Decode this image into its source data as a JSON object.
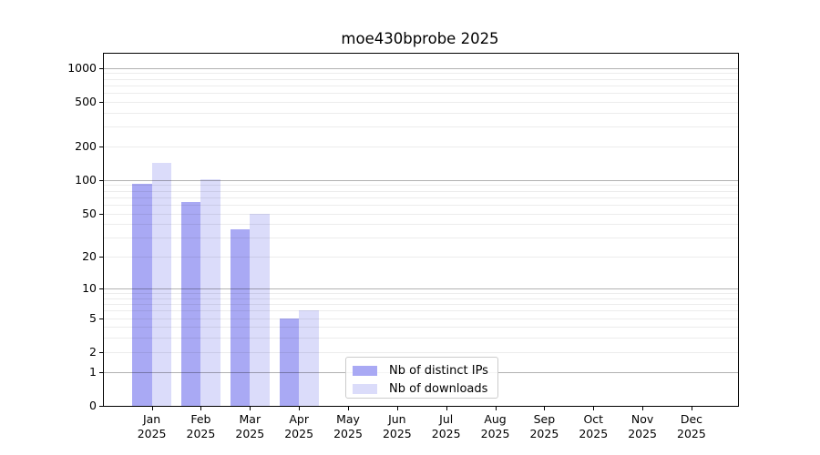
{
  "chart_data": {
    "type": "bar",
    "title": "moe430bprobe 2025",
    "categories": [
      "Jan 2025",
      "Feb 2025",
      "Mar 2025",
      "Apr 2025",
      "May 2025",
      "Jun 2025",
      "Jul 2025",
      "Aug 2025",
      "Sep 2025",
      "Oct 2025",
      "Nov 2025",
      "Dec 2025"
    ],
    "series": [
      {
        "name": "Nb of distinct IPs",
        "color": "#a9a9f4",
        "values": [
          92,
          63,
          36,
          5,
          0,
          0,
          0,
          0,
          0,
          0,
          0,
          0
        ]
      },
      {
        "name": "Nb of downloads",
        "color": "#dbdcfa",
        "values": [
          142,
          102,
          50,
          6,
          0,
          0,
          0,
          0,
          0,
          0,
          0,
          0
        ]
      }
    ],
    "y_axis": {
      "scale": "log10(1+v)",
      "tick_labels": [
        "0",
        "1",
        "2",
        "5",
        "10",
        "20",
        "50",
        "100",
        "200",
        "500",
        "1000"
      ],
      "tick_values": [
        0,
        1,
        2,
        5,
        10,
        20,
        50,
        100,
        200,
        500,
        1000
      ],
      "major_gridline_values": [
        1,
        10,
        100,
        1000
      ],
      "minor_gridline_values": [
        2,
        3,
        4,
        5,
        6,
        7,
        8,
        9,
        20,
        30,
        40,
        50,
        60,
        70,
        80,
        90,
        200,
        300,
        400,
        500,
        600,
        700,
        800,
        900
      ],
      "major_gridline_color": "#b3b3b3",
      "minor_gridline_color": "#ebebeb",
      "ylim": [
        0,
        1300
      ]
    },
    "x_axis": {
      "ylabel": "",
      "xlabel": ""
    },
    "legend": {
      "position": "inside lower-center",
      "entries": [
        "Nb of distinct IPs",
        "Nb of downloads"
      ]
    }
  }
}
